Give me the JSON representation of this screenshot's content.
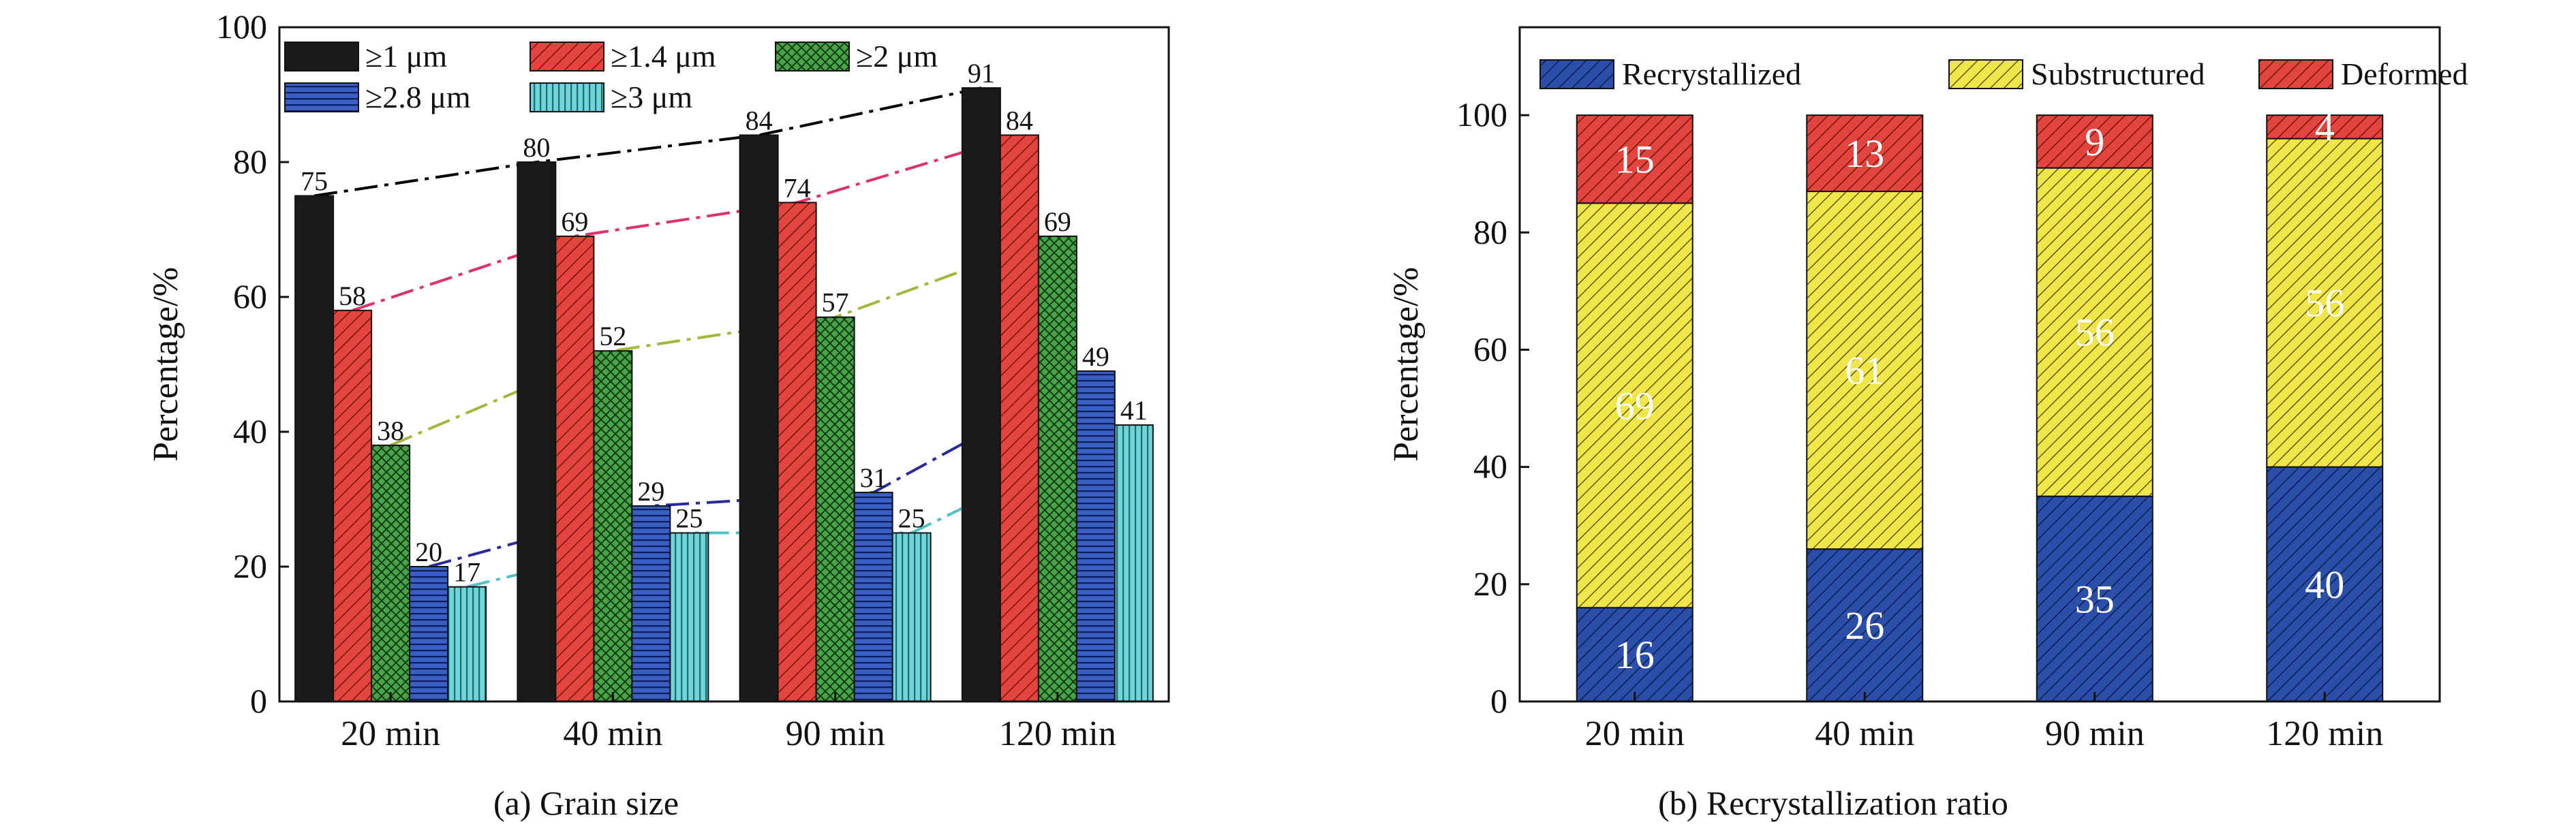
{
  "chart_data": [
    {
      "type": "bar",
      "caption": "(a) Grain size",
      "ylabel": "Percentage/%",
      "xlabel": "",
      "ylim": [
        0,
        100
      ],
      "yticks": [
        0,
        20,
        40,
        60,
        80,
        100
      ],
      "categories": [
        "20 min",
        "40 min",
        "90 min",
        "120 min"
      ],
      "legend_position": "top-left",
      "series": [
        {
          "name": "≥1 μm",
          "values": [
            75,
            80,
            84,
            91
          ],
          "color": "#1a1a1a",
          "pattern": "solid",
          "trend_color": "#000000"
        },
        {
          "name": "≥1.4 μm",
          "values": [
            58,
            69,
            74,
            84
          ],
          "color": "#e2453d",
          "pattern": "hatch",
          "trend_color": "#e0306a"
        },
        {
          "name": "≥2 μm",
          "values": [
            38,
            52,
            57,
            69
          ],
          "color": "#3f9a3f",
          "pattern": "cross",
          "trend_color": "#a3b83a"
        },
        {
          "name": "≥2.8 μm",
          "values": [
            20,
            29,
            31,
            49
          ],
          "color": "#2b4fa8",
          "pattern": "hlines",
          "trend_color": "#2a2a9a"
        },
        {
          "name": "≥3 μm",
          "values": [
            17,
            25,
            25,
            41
          ],
          "color": "#5cc6cf",
          "pattern": "vlines",
          "trend_color": "#4ec1c4"
        }
      ]
    },
    {
      "type": "bar",
      "stacked": true,
      "caption": "(b) Recrystallization ratio",
      "ylabel": "Percentage/%",
      "xlabel": "",
      "ylim": [
        0,
        115
      ],
      "yticks": [
        0,
        20,
        40,
        60,
        80,
        100
      ],
      "categories": [
        "20 min",
        "40 min",
        "90 min",
        "120 min"
      ],
      "legend_position": "top",
      "series": [
        {
          "name": "Recrystallized",
          "values": [
            16,
            26,
            35,
            40
          ],
          "color": "#2b4fa8",
          "label_color": "#ffffff"
        },
        {
          "name": "Substructured",
          "values": [
            69,
            61,
            56,
            56
          ],
          "color": "#f0e64a",
          "label_color": "#ffffff"
        },
        {
          "name": "Deformed",
          "values": [
            15,
            13,
            9,
            4
          ],
          "color": "#e2453d",
          "label_color": "#ffffff"
        }
      ]
    }
  ]
}
